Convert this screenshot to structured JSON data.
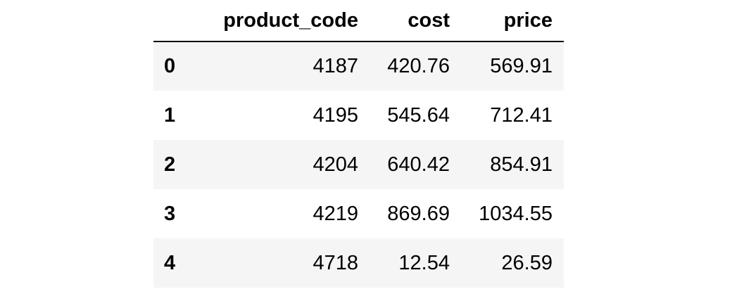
{
  "table": {
    "index_header": "",
    "columns": [
      "product_code",
      "cost",
      "price"
    ],
    "rows": [
      {
        "index": "0",
        "product_code": "4187",
        "cost": "420.76",
        "price": "569.91"
      },
      {
        "index": "1",
        "product_code": "4195",
        "cost": "545.64",
        "price": "712.41"
      },
      {
        "index": "2",
        "product_code": "4204",
        "cost": "640.42",
        "price": "854.91"
      },
      {
        "index": "3",
        "product_code": "4219",
        "cost": "869.69",
        "price": "1034.55"
      },
      {
        "index": "4",
        "product_code": "4718",
        "cost": "12.54",
        "price": "26.59"
      }
    ]
  },
  "colors": {
    "stripe": "#f5f5f5",
    "text": "#000000",
    "header_rule": "#000000"
  }
}
